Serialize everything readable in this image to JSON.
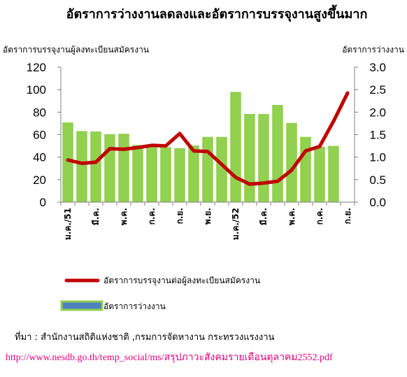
{
  "chart_data": {
    "type": "bar+line",
    "title": "อัตราการว่างงานลดลงและอัตราการบรรจุงานสูงขึ้นมาก",
    "y_left_label": "อัตราการบรรจุงานผู้ลงทะเบียนสมัครงาน",
    "y_right_label": "อัตราการว่างงาน",
    "y_left_range": [
      0,
      120
    ],
    "y_left_ticks": [
      "0",
      "20",
      "40",
      "60",
      "80",
      "100",
      "120"
    ],
    "y_right_range": [
      0,
      3.0
    ],
    "y_right_ticks": [
      "0.0",
      "0.5",
      "1.0",
      "1.5",
      "2.0",
      "2.5",
      "3.0"
    ],
    "x_tick_labels": [
      {
        "index": 0,
        "label": "ม.ค./51"
      },
      {
        "index": 2,
        "label": "มี.ค."
      },
      {
        "index": 4,
        "label": "พ.ค."
      },
      {
        "index": 6,
        "label": "ก.ค."
      },
      {
        "index": 8,
        "label": "ก.ย."
      },
      {
        "index": 10,
        "label": "พ.ย."
      },
      {
        "index": 12,
        "label": "ม.ค./52"
      },
      {
        "index": 14,
        "label": "มี.ค."
      },
      {
        "index": 16,
        "label": "พ.ค."
      },
      {
        "index": 18,
        "label": "ก.ค."
      },
      {
        "index": 20,
        "label": "ก.ย."
      }
    ],
    "series": [
      {
        "name": "อัตราการว่างงาน",
        "type": "bar",
        "axis": "right",
        "color": "#92d050",
        "values": [
          1.77,
          1.58,
          1.57,
          1.51,
          1.52,
          1.27,
          1.23,
          1.22,
          1.2,
          1.26,
          1.45,
          1.45,
          2.45,
          1.96,
          1.96,
          2.16,
          1.76,
          1.45,
          1.23,
          1.25
        ]
      },
      {
        "name": "อัตราการบรรจุงานต่อผู้ลงทะเบียนสมัครงาน",
        "type": "line",
        "axis": "left",
        "color": "#c00000",
        "values": [
          37.5,
          34.5,
          35.5,
          47.5,
          47,
          48.5,
          50.5,
          50,
          61,
          45.5,
          45,
          33.5,
          22,
          16,
          17,
          18.5,
          28.5,
          45.5,
          49.5,
          72,
          97
        ]
      }
    ],
    "legend": [
      {
        "label": "อัตราการบรรจุงานต่อผู้ลงทะเบียนสมัครงาน",
        "type": "line",
        "color": "#c00000"
      },
      {
        "label": "อัตราการว่างงาน",
        "type": "bar",
        "color": "#4f81bd",
        "border": "#92d050"
      }
    ],
    "source": "ที่มา : สำนักงานสถิติแห่งชาติ ,กรมการจัดหางาน กระทรวงแรงงาน",
    "url": "http://www.nesdb.go.th/temp_social/ms/สรุปภาวะสังคมรายเดือนตุลาคม2552.pdf"
  }
}
